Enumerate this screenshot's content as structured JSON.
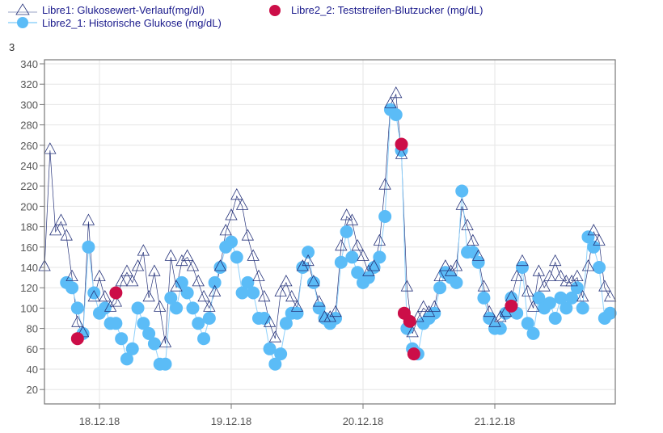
{
  "legend": {
    "libre1": "Libre1: Glukosewert-Verlauf(mg/dl)",
    "libre2_1": "Libre2_1: Historische Glukose (mg/dL)",
    "libre2_2": "Libre2_2: Teststreifen-Blutzucker (mg/dL)"
  },
  "axis_top_label": "3",
  "chart_data": {
    "type": "scatter",
    "title": "",
    "xlabel": "",
    "ylabel": "",
    "ylim": [
      6,
      343
    ],
    "xlim": [
      "17.12.18 14:00",
      "21.12.18 22:30"
    ],
    "grid": true,
    "legend_placement": "top-left",
    "y_ticks": [
      20,
      40,
      60,
      80,
      100,
      120,
      140,
      160,
      180,
      200,
      220,
      240,
      260,
      280,
      300,
      320,
      340
    ],
    "x_ticks": [
      "18.12.18",
      "19.12.18",
      "20.12.18",
      "21.12.18"
    ],
    "series": [
      {
        "name": "Libre1: Glukosewert-Verlauf(mg/dl)",
        "marker": "triangle-open",
        "color": "#26337a",
        "hourly": [
          {
            "date": "17.12.18",
            "start_hour": 14,
            "values": [
              140,
              255,
              175,
              185,
              170,
              130,
              85,
              75,
              185,
              110
            ]
          },
          {
            "date": "18.12.18",
            "start_hour": 0,
            "values": [
              130,
              110,
              100,
              105,
              125,
              135,
              125,
              140,
              155,
              110,
              135,
              100,
              65,
              150,
              120,
              145,
              150,
              140,
              125,
              110,
              100,
              115,
              140,
              175
            ]
          },
          {
            "date": "19.12.18",
            "start_hour": 0,
            "values": [
              190,
              210,
              200,
              170,
              150,
              130,
              110,
              85,
              70,
              115,
              125,
              110,
              100,
              140,
              145,
              125,
              105,
              90,
              90,
              95,
              160,
              190,
              185,
              160
            ]
          },
          {
            "date": "20.12.18",
            "start_hour": 0,
            "values": [
              150,
              135,
              140,
              165,
              220,
              300,
              310,
              250,
              120,
              75,
              90,
              100,
              95,
              100,
              130,
              140,
              135,
              140,
              200,
              180,
              165,
              150,
              120,
              95
            ]
          },
          {
            "date": "21.12.18",
            "start_hour": 0,
            "values": [
              85,
              90,
              95,
              110,
              130,
              145,
              115,
              100,
              135,
              120,
              130,
              145,
              130,
              125,
              125,
              130,
              110,
              140,
              175,
              165,
              120,
              110
            ]
          }
        ]
      },
      {
        "name": "Libre2_1: Historische Glukose (mg/dL)",
        "marker": "circle",
        "color": "#5bbcf7",
        "hourly": [
          {
            "date": "17.12.18",
            "start_hour": 18,
            "values": [
              125,
              120,
              100,
              75,
              160,
              115
            ]
          },
          {
            "date": "18.12.18",
            "start_hour": 0,
            "values": [
              95,
              100,
              85,
              85,
              70,
              50,
              60,
              100,
              85,
              75,
              65,
              45,
              45,
              110,
              100,
              125,
              115,
              100,
              85,
              70,
              90,
              125,
              140,
              160
            ]
          },
          {
            "date": "19.12.18",
            "start_hour": 0,
            "values": [
              165,
              150,
              115,
              125,
              115,
              90,
              90,
              60,
              45,
              55,
              85,
              95,
              95,
              140,
              155,
              125,
              100,
              90,
              85,
              90,
              145,
              175,
              150,
              135
            ]
          },
          {
            "date": "20.12.18",
            "start_hour": 0,
            "values": [
              125,
              130,
              140,
              150,
              190,
              295,
              290,
              255,
              80,
              60,
              55,
              85,
              90,
              95,
              120,
              135,
              130,
              125,
              215,
              155,
              155,
              145,
              110,
              90
            ]
          },
          {
            "date": "21.12.18",
            "start_hour": 0,
            "values": [
              80,
              80,
              95,
              110,
              95,
              140,
              85,
              75,
              110,
              100,
              105,
              90,
              110,
              100,
              110,
              120,
              100,
              170,
              160,
              140,
              90,
              95
            ]
          }
        ]
      },
      {
        "name": "Libre2_2: Teststreifen-Blutzucker (mg/dL)",
        "marker": "circle",
        "color": "#cc0e48",
        "points": [
          [
            "17.12.18 20:00",
            70
          ],
          [
            "18.12.18 03:00",
            115
          ],
          [
            "20.12.18 07:00",
            261
          ],
          [
            "20.12.18 07:30",
            95
          ],
          [
            "20.12.18 08:30",
            87
          ],
          [
            "20.12.18 09:15",
            55
          ],
          [
            "21.12.18 03:00",
            102
          ]
        ]
      }
    ]
  }
}
